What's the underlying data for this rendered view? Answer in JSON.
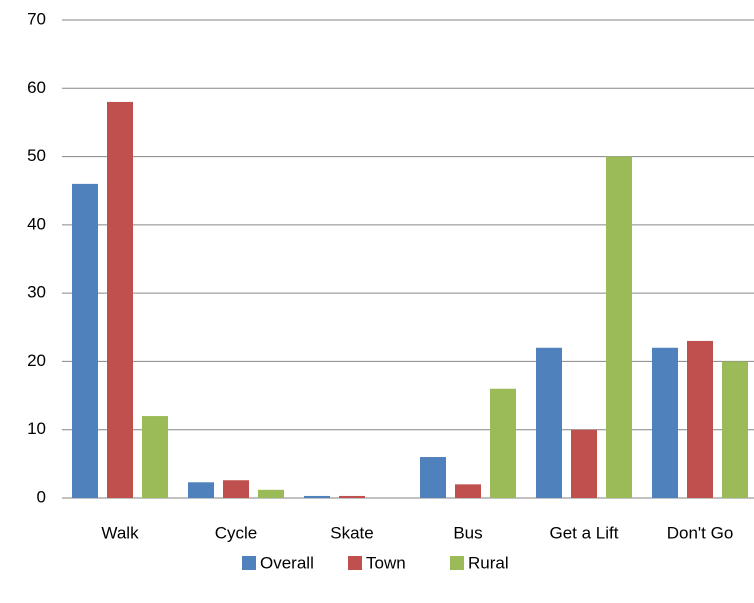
{
  "chart_data": {
    "type": "bar",
    "categories": [
      "Walk",
      "Cycle",
      "Skate",
      "Bus",
      "Get a Lift",
      "Don't Go"
    ],
    "series": [
      {
        "name": "Overall",
        "color": "#4f81bd",
        "values": [
          46,
          2.3,
          0.3,
          6,
          22,
          22
        ]
      },
      {
        "name": "Town",
        "color": "#c0504d",
        "values": [
          58,
          2.6,
          0.3,
          2,
          10,
          23
        ]
      },
      {
        "name": "Rural",
        "color": "#9bbb59",
        "values": [
          12,
          1.2,
          0,
          16,
          50,
          20
        ]
      }
    ],
    "ylim": [
      0,
      70
    ],
    "yticks": [
      0,
      10,
      20,
      30,
      40,
      50,
      60,
      70
    ],
    "grid": true,
    "legend": "bottom"
  }
}
